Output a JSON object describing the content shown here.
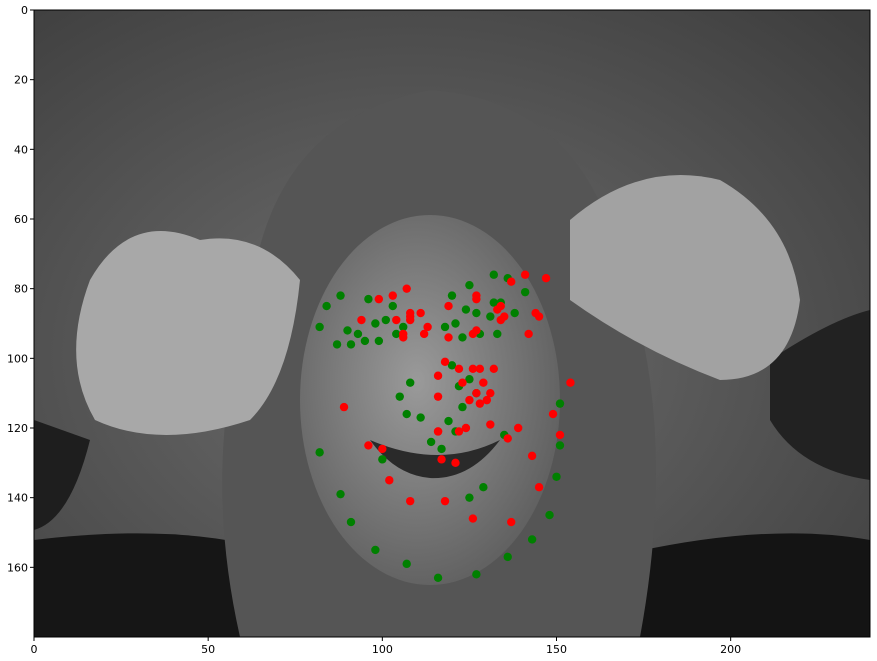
{
  "chart_data": {
    "type": "scatter",
    "title": "",
    "xlabel": "",
    "ylabel": "",
    "xlim": [
      0,
      240
    ],
    "ylim": [
      180,
      0
    ],
    "y_inverted": true,
    "grid": false,
    "background": "grayscale photograph of a smiling woman with hands at her ears",
    "x_ticks": [
      0,
      50,
      100,
      150,
      200
    ],
    "y_ticks": [
      0,
      20,
      40,
      60,
      80,
      100,
      120,
      140,
      160
    ],
    "series": [
      {
        "color": "#008000",
        "points": [
          [
            82,
            91
          ],
          [
            84,
            85
          ],
          [
            88,
            82
          ],
          [
            87,
            96
          ],
          [
            90,
            92
          ],
          [
            91,
            96
          ],
          [
            93,
            93
          ],
          [
            95,
            95
          ],
          [
            96,
            83
          ],
          [
            98,
            90
          ],
          [
            99,
            95
          ],
          [
            101,
            89
          ],
          [
            103,
            85
          ],
          [
            104,
            93
          ],
          [
            106,
            91
          ],
          [
            108,
            107
          ],
          [
            105,
            111
          ],
          [
            107,
            116
          ],
          [
            111,
            117
          ],
          [
            114,
            124
          ],
          [
            117,
            126
          ],
          [
            119,
            118
          ],
          [
            120,
            102
          ],
          [
            123,
            114
          ],
          [
            125,
            106
          ],
          [
            127,
            110
          ],
          [
            118,
            91
          ],
          [
            120,
            82
          ],
          [
            121,
            90
          ],
          [
            123,
            94
          ],
          [
            124,
            86
          ],
          [
            125,
            79
          ],
          [
            127,
            87
          ],
          [
            128,
            93
          ],
          [
            131,
            88
          ],
          [
            132,
            76
          ],
          [
            134,
            84
          ],
          [
            136,
            77
          ],
          [
            138,
            87
          ],
          [
            141,
            81
          ],
          [
            129,
            137
          ],
          [
            125,
            140
          ],
          [
            135,
            122
          ],
          [
            133,
            93
          ],
          [
            132,
            84
          ],
          [
            151,
            113
          ],
          [
            151,
            125
          ],
          [
            150,
            134
          ],
          [
            148,
            145
          ],
          [
            143,
            152
          ],
          [
            136,
            157
          ],
          [
            127,
            162
          ],
          [
            116,
            163
          ],
          [
            107,
            159
          ],
          [
            98,
            155
          ],
          [
            91,
            147
          ],
          [
            88,
            139
          ],
          [
            82,
            127
          ],
          [
            100,
            129
          ],
          [
            121,
            121
          ],
          [
            122,
            108
          ]
        ]
      },
      {
        "color": "#ff0000",
        "points": [
          [
            89,
            114
          ],
          [
            94,
            89
          ],
          [
            99,
            83
          ],
          [
            103,
            82
          ],
          [
            104,
            89
          ],
          [
            106,
            93
          ],
          [
            107,
            80
          ],
          [
            108,
            87
          ],
          [
            108,
            89
          ],
          [
            111,
            87
          ],
          [
            112,
            93
          ],
          [
            113,
            91
          ],
          [
            116,
            105
          ],
          [
            116,
            111
          ],
          [
            116,
            121
          ],
          [
            117,
            129
          ],
          [
            118,
            141
          ],
          [
            118,
            101
          ],
          [
            119,
            85
          ],
          [
            119,
            94
          ],
          [
            121,
            130
          ],
          [
            122,
            103
          ],
          [
            122,
            121
          ],
          [
            123,
            107
          ],
          [
            124,
            120
          ],
          [
            125,
            112
          ],
          [
            126,
            103
          ],
          [
            126,
            146
          ],
          [
            127,
            110
          ],
          [
            127,
            82
          ],
          [
            127,
            92
          ],
          [
            128,
            103
          ],
          [
            128,
            113
          ],
          [
            129,
            107
          ],
          [
            130,
            112
          ],
          [
            131,
            119
          ],
          [
            131,
            110
          ],
          [
            132,
            103
          ],
          [
            133,
            86
          ],
          [
            134,
            85
          ],
          [
            135,
            88
          ],
          [
            136,
            123
          ],
          [
            137,
            78
          ],
          [
            137,
            147
          ],
          [
            139,
            120
          ],
          [
            141,
            76
          ],
          [
            142,
            93
          ],
          [
            143,
            128
          ],
          [
            144,
            87
          ],
          [
            145,
            137
          ],
          [
            145,
            88
          ],
          [
            147,
            77
          ],
          [
            149,
            116
          ],
          [
            151,
            122
          ],
          [
            154,
            107
          ],
          [
            96,
            125
          ],
          [
            100,
            126
          ],
          [
            102,
            135
          ],
          [
            108,
            141
          ],
          [
            116,
            121
          ],
          [
            126,
            93
          ],
          [
            108,
            88
          ],
          [
            106,
            94
          ],
          [
            134,
            89
          ],
          [
            127,
            83
          ]
        ]
      }
    ]
  }
}
